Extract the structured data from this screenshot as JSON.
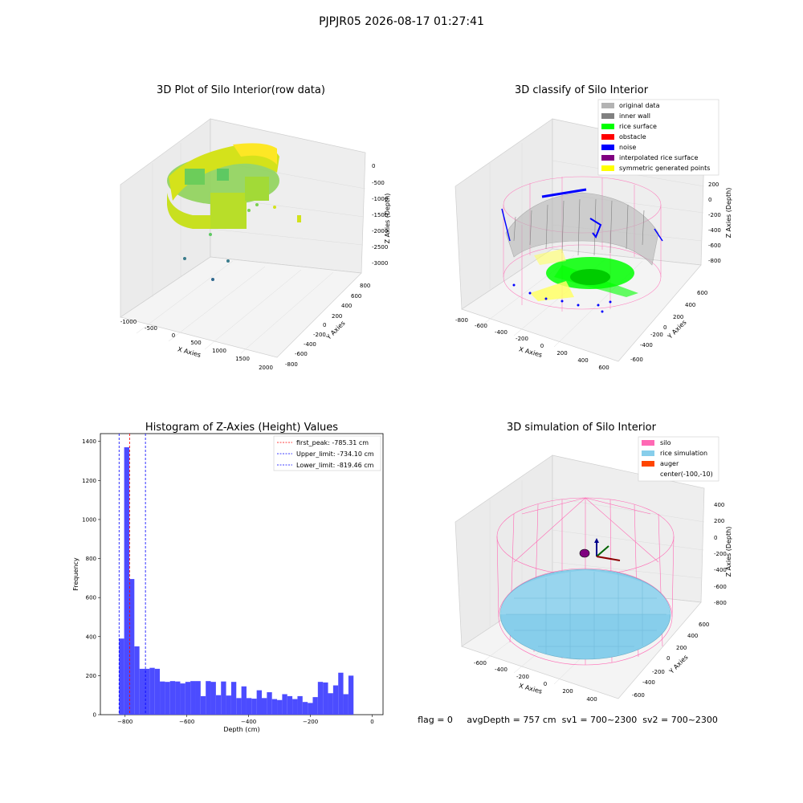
{
  "suptitle": "PJPJR05 2026-08-17 01:27:41",
  "colors": {
    "original": "#b3b3b3",
    "inner_wall": "#808080",
    "rice_surface": "#00ff00",
    "obstacle": "#ff0000",
    "noise": "#0000ff",
    "interpolated": "#800080",
    "symmetric": "#ffff00",
    "silo": "#ff69b4",
    "rice_sim": "#87ceeb",
    "auger": "#ff4500",
    "hist_bar": "#4c4cff"
  },
  "panel1": {
    "title": "3D Plot of Silo Interior(row data)",
    "xlabel": "X Axies",
    "ylabel": "Y Axies",
    "zlabel": "Z Axies (Depth)",
    "xticks": [
      "-1000",
      "-500",
      "0",
      "500",
      "1000",
      "1500",
      "2000"
    ],
    "yticks": [
      "800",
      "600",
      "400",
      "200",
      "0",
      "-200",
      "-400",
      "-600",
      "-800"
    ],
    "zticks": [
      "0",
      "-500",
      "-1000",
      "-1500",
      "-2000",
      "-2500",
      "-3000"
    ]
  },
  "panel2": {
    "title": "3D classify of Silo Interior",
    "xlabel": "X Axies",
    "ylabel": "Y Axies",
    "zlabel": "Z Axies (Depth)",
    "xticks": [
      "-800",
      "-600",
      "-400",
      "-200",
      "0",
      "200",
      "400",
      "600"
    ],
    "yticks": [
      "600",
      "400",
      "200",
      "0",
      "-200",
      "-400",
      "-600"
    ],
    "zticks": [
      "200",
      "0",
      "-200",
      "-400",
      "-600",
      "-800"
    ],
    "legend": [
      "original data",
      "inner wall",
      "rice surface",
      "obstacle",
      "noise",
      "interpolated rice surface",
      "symmetric generated points"
    ]
  },
  "panel4": {
    "title": "3D simulation of Silo Interior",
    "xlabel": "X Axies",
    "ylabel": "Y Axies",
    "zlabel": "Z Axies (Depth)",
    "xticks": [
      "-600",
      "-400",
      "-200",
      "0",
      "200",
      "400"
    ],
    "yticks": [
      "600",
      "400",
      "200",
      "0",
      "-200",
      "-400",
      "-600"
    ],
    "zticks": [
      "400",
      "200",
      "0",
      "-200",
      "-400",
      "-600",
      "-800"
    ],
    "legend": [
      "silo",
      "rice simulation",
      "auger",
      "center(-100,-10)"
    ]
  },
  "status_text": "flag = 0     avgDepth = 757 cm  sv1 = 700~2300  sv2 = 700~2300",
  "chart_data": [
    {
      "type": "bar",
      "title": "Histogram of Z-Axies (Height) Values",
      "xlabel": "Depth (cm)",
      "ylabel": "Frequency",
      "xlim": [
        -880,
        35
      ],
      "ylim": [
        0,
        1440
      ],
      "xticks": [
        -800,
        -600,
        -400,
        -200,
        0
      ],
      "yticks": [
        0,
        200,
        400,
        600,
        800,
        1000,
        1200,
        1400
      ],
      "bin_edges_start": -819.5,
      "bin_width": 16.5,
      "values": [
        390,
        1370,
        695,
        350,
        235,
        235,
        240,
        235,
        170,
        168,
        172,
        170,
        160,
        168,
        172,
        172,
        95,
        172,
        168,
        100,
        170,
        98,
        168,
        85,
        145,
        85,
        82,
        125,
        85,
        115,
        80,
        75,
        105,
        95,
        80,
        95,
        65,
        60,
        90,
        168,
        165,
        110,
        150,
        215,
        105,
        200
      ],
      "vlines": [
        {
          "label": "first_peak: -785.31 cm",
          "x": -785.31,
          "color": "#ff0000"
        },
        {
          "label": "Upper_limit: -734.10 cm",
          "x": -734.1,
          "color": "#0000ff"
        },
        {
          "label": "Lower_limit: -819.46 cm",
          "x": -819.46,
          "color": "#0000ff"
        }
      ]
    }
  ]
}
